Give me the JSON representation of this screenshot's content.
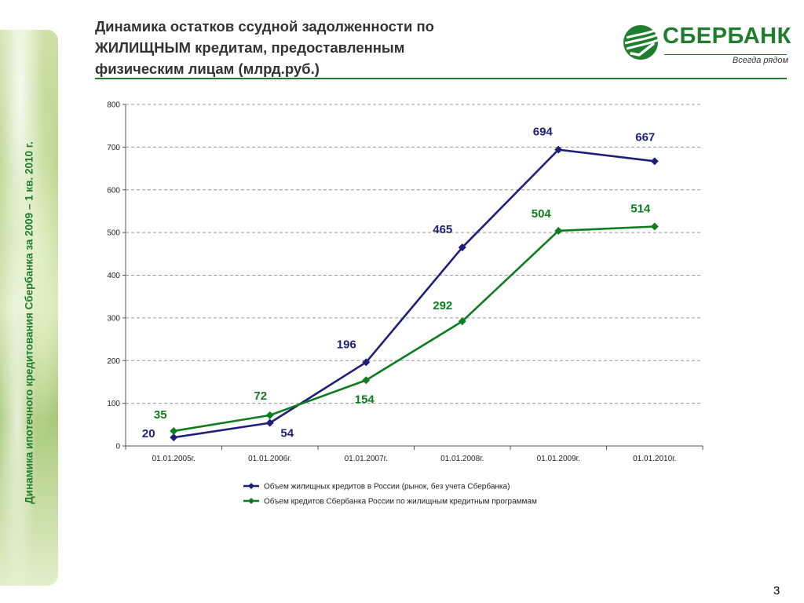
{
  "side_caption": "Динамика ипотечного кредитования Сбербанка за 2009 – 1 кв. 2010 г.",
  "title_lines": [
    "Динамика остатков ссудной задолженности по",
    "ЖИЛИЩНЫМ кредитам, предоставленным",
    "физическим лицам (млрд.руб.)"
  ],
  "logo": {
    "name": "СБЕРБАНК",
    "tagline": "Всегда рядом",
    "mark": "sberbank-logo-mark"
  },
  "page_number": "3",
  "colors": {
    "brand": "#1f7d2e",
    "series_blue": "#1f1f7a",
    "series_green": "#0e7d1f",
    "title": "#333333"
  },
  "chart_data": {
    "type": "line",
    "categories": [
      "01.01.2005г.",
      "01.01.2006г.",
      "01.01.2007г.",
      "01.01.2008г.",
      "01.01.2009г.",
      "01.01.2010г."
    ],
    "series": [
      {
        "name": "Объем жилищных кредитов в России (рынок, без учета Сбербанка)",
        "values": [
          20,
          54,
          196,
          465,
          694,
          667
        ],
        "color": "#1f1f7a"
      },
      {
        "name": "Объем кредитов Сбербанка России по жилищным кредитным программам",
        "values": [
          35,
          72,
          154,
          292,
          504,
          514
        ],
        "color": "#0e7d1f"
      }
    ],
    "ylim": [
      0,
      800
    ],
    "yticks": [
      0,
      100,
      200,
      300,
      400,
      500,
      600,
      700,
      800
    ],
    "grid": true,
    "legend_position": "bottom",
    "marker": "diamond"
  }
}
